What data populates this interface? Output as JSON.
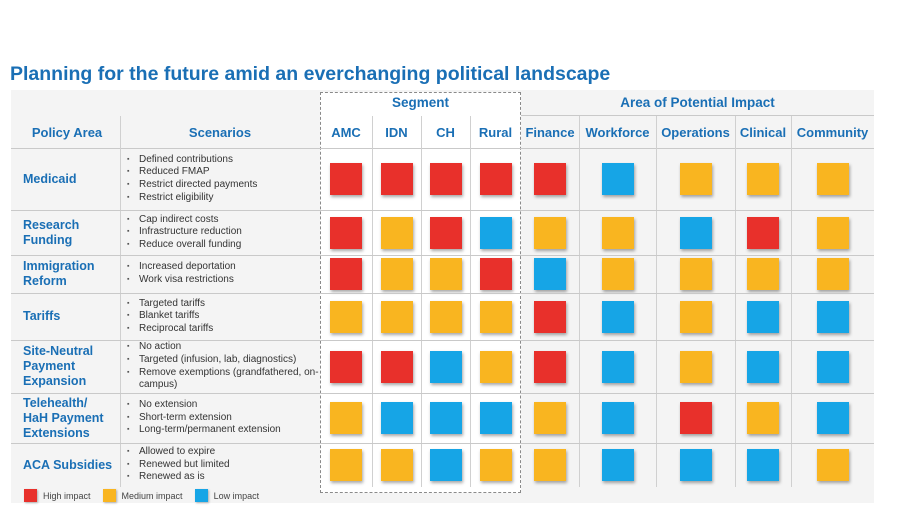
{
  "title": "Planning for the future amid an everchanging political landscape",
  "colors": {
    "high": "#e8302b",
    "medium": "#f9b520",
    "low": "#16a5e6",
    "accent": "#1a6fb5"
  },
  "groups": {
    "segment": "Segment",
    "impact": "Area of Potential Impact"
  },
  "headers": {
    "policy": "Policy Area",
    "scenarios": "Scenarios",
    "columns": [
      "AMC",
      "IDN",
      "CH",
      "Rural",
      "Finance",
      "Workforce",
      "Operations",
      "Clinical",
      "Community"
    ]
  },
  "rows": [
    {
      "policy": "Medicaid",
      "scenarios": [
        "Defined contributions",
        "Reduced FMAP",
        "Restrict directed payments",
        "Restrict eligibility"
      ],
      "ratings": [
        "high",
        "high",
        "high",
        "high",
        "high",
        "low",
        "medium",
        "medium",
        "medium"
      ]
    },
    {
      "policy": "Research Funding",
      "scenarios": [
        "Cap indirect costs",
        "Infrastructure reduction",
        "Reduce overall funding"
      ],
      "ratings": [
        "high",
        "medium",
        "high",
        "low",
        "medium",
        "medium",
        "low",
        "high",
        "medium"
      ]
    },
    {
      "policy": "Immigration Reform",
      "scenarios": [
        "Increased deportation",
        "Work visa restrictions"
      ],
      "ratings": [
        "high",
        "medium",
        "medium",
        "high",
        "low",
        "medium",
        "medium",
        "medium",
        "medium"
      ]
    },
    {
      "policy": "Tariffs",
      "scenarios": [
        "Targeted tariffs",
        "Blanket tariffs",
        "Reciprocal tariffs"
      ],
      "ratings": [
        "medium",
        "medium",
        "medium",
        "medium",
        "high",
        "low",
        "medium",
        "low",
        "low"
      ]
    },
    {
      "policy": "Site-Neutral Payment Expansion",
      "scenarios": [
        "No action",
        "Targeted (infusion, lab, diagnostics)",
        "Remove exemptions (grandfathered, on-campus)"
      ],
      "ratings": [
        "high",
        "high",
        "low",
        "medium",
        "high",
        "low",
        "medium",
        "low",
        "low"
      ]
    },
    {
      "policy": "Telehealth/ HaH Payment Extensions",
      "scenarios": [
        "No extension",
        "Short-term extension",
        "Long-term/permanent extension"
      ],
      "ratings": [
        "medium",
        "low",
        "low",
        "low",
        "medium",
        "low",
        "high",
        "medium",
        "low"
      ]
    },
    {
      "policy": "ACA Subsidies",
      "scenarios": [
        "Allowed to expire",
        "Renewed but limited",
        "Renewed as is"
      ],
      "ratings": [
        "medium",
        "medium",
        "low",
        "medium",
        "medium",
        "low",
        "low",
        "low",
        "medium"
      ]
    }
  ],
  "legend": [
    {
      "level": "high",
      "label": "High impact"
    },
    {
      "level": "medium",
      "label": "Medium impact"
    },
    {
      "level": "low",
      "label": "Low impact"
    }
  ]
}
